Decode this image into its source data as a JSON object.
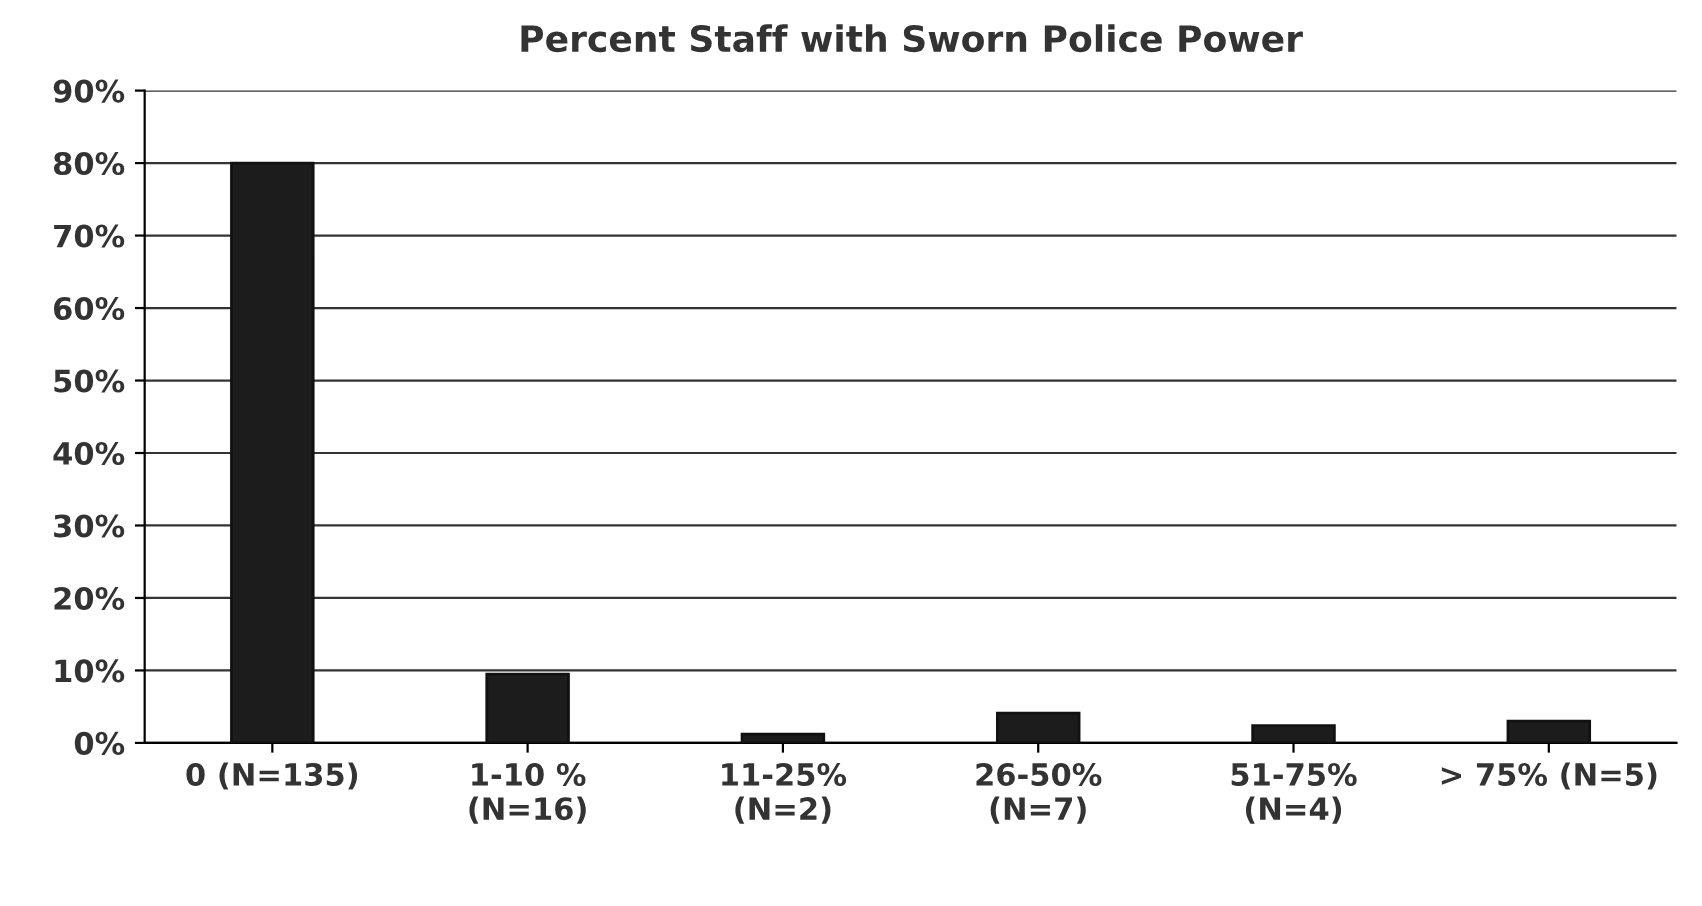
{
  "chart_data": {
    "type": "bar",
    "title": "Percent Staff with Sworn Police Power",
    "categories": [
      "0 (N=135)",
      "1-10 %\n(N=16)",
      "11-25%\n(N=2)",
      "26-50%\n(N=7)",
      "51-75%\n(N=4)",
      "> 75% (N=5)"
    ],
    "values": [
      80,
      9.5,
      1.2,
      4.1,
      2.4,
      3.0
    ],
    "color": "#1c1c1c",
    "ylim": [
      0,
      90
    ],
    "yticks": [
      {
        "value": 0,
        "label": "0%"
      },
      {
        "value": 10,
        "label": "10%"
      },
      {
        "value": 20,
        "label": "20%"
      },
      {
        "value": 30,
        "label": "30%"
      },
      {
        "value": 40,
        "label": "40%"
      },
      {
        "value": 50,
        "label": "50%"
      },
      {
        "value": 60,
        "label": "60%"
      },
      {
        "value": 70,
        "label": "70%"
      },
      {
        "value": 80,
        "label": "80%"
      },
      {
        "value": 90,
        "label": "90%"
      }
    ],
    "grid": "y",
    "legend": false
  }
}
